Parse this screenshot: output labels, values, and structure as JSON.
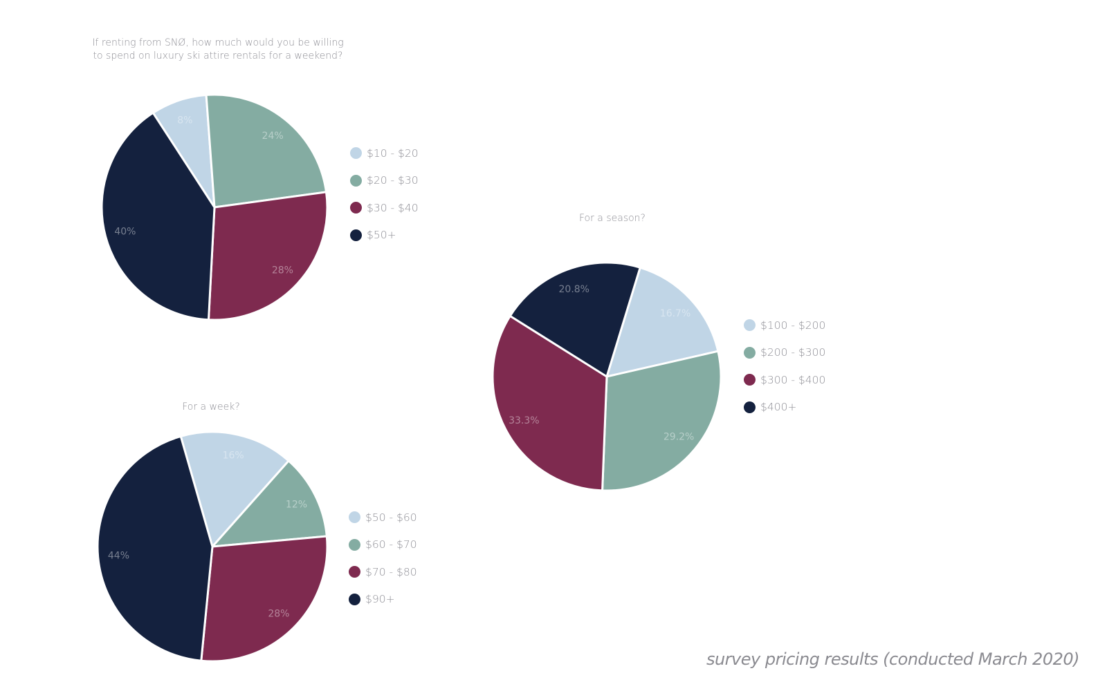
{
  "chart_data": [
    {
      "type": "pie",
      "title": "If renting from SNØ, how much would you be willing\nto spend on luxury ski attire rentals for a weekend?",
      "slices": [
        {
          "label": "$10 - $20",
          "value": 8,
          "display": "8%",
          "color": "#c0d5e6"
        },
        {
          "label": "$20 - $30",
          "value": 24,
          "display": "24%",
          "color": "#84aca2"
        },
        {
          "label": "$30 - $40",
          "value": 28,
          "display": "28%",
          "color": "#7e2a4f"
        },
        {
          "label": "$50+",
          "value": 40,
          "display": "40%",
          "color": "#14213e"
        }
      ]
    },
    {
      "type": "pie",
      "title": "For a week?",
      "slices": [
        {
          "label": "$50 - $60",
          "value": 16,
          "display": "16%",
          "color": "#c0d5e6"
        },
        {
          "label": "$60 - $70",
          "value": 12,
          "display": "12%",
          "color": "#84aca2"
        },
        {
          "label": "$70 - $80",
          "value": 28,
          "display": "28%",
          "color": "#7e2a4f"
        },
        {
          "label": "$90+",
          "value": 44,
          "display": "44%",
          "color": "#14213e"
        }
      ]
    },
    {
      "type": "pie",
      "title": "For a season?",
      "slices": [
        {
          "label": "$100 - $200",
          "value": 16.7,
          "display": "16.7%",
          "color": "#c0d5e6"
        },
        {
          "label": "$200 - $300",
          "value": 29.2,
          "display": "29.2%",
          "color": "#84aca2"
        },
        {
          "label": "$300 - $400",
          "value": 33.3,
          "display": "33.3%",
          "color": "#7e2a4f"
        },
        {
          "label": "$400+",
          "value": 20.8,
          "display": "20.8%",
          "color": "#14213e"
        }
      ]
    }
  ],
  "footer": "survey pricing results (conducted March 2020)"
}
